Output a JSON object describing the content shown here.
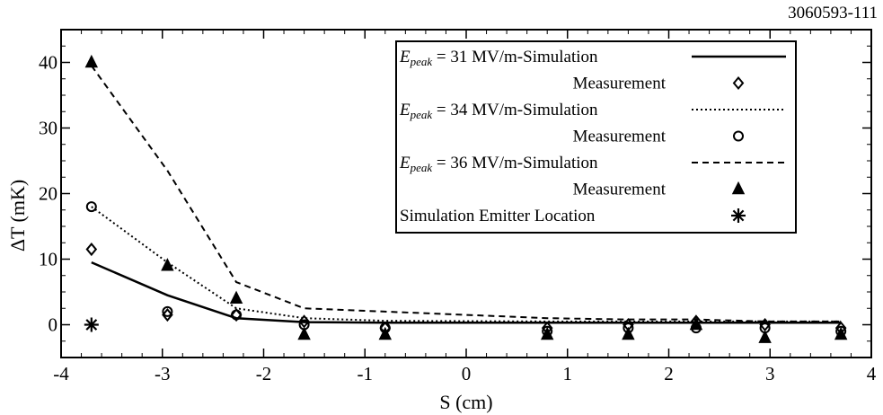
{
  "figure_id": "3060593-111",
  "chart_data": {
    "type": "line",
    "title": "",
    "xlabel": "S (cm)",
    "ylabel": "ΔT (mK)",
    "xlim": [
      -4,
      4
    ],
    "ylim": [
      -5,
      45
    ],
    "x_ticks": [
      -4,
      -3,
      -2,
      -1,
      0,
      1,
      2,
      3,
      4
    ],
    "y_ticks": [
      0,
      10,
      20,
      30,
      40
    ],
    "grid": false,
    "legend_position": "top-right",
    "series": [
      {
        "name": "E_peak = 31 MV/m-Simulation",
        "kind": "line",
        "dash": "solid",
        "x": [
          -3.7,
          -2.95,
          -2.27,
          -1.6,
          -0.8,
          0.8,
          1.6,
          2.27,
          2.95,
          3.7
        ],
        "y": [
          9.5,
          4.5,
          1.0,
          0.4,
          0.3,
          0.3,
          0.3,
          0.3,
          0.3,
          0.3
        ]
      },
      {
        "name": "Measurement",
        "kind": "marker",
        "marker": "diamond",
        "x": [
          -3.7,
          -2.95,
          -2.27,
          -1.6,
          -0.8,
          0.8,
          1.6,
          2.27,
          2.95,
          3.7
        ],
        "y": [
          11.5,
          1.5,
          1.5,
          0.5,
          -0.5,
          -0.5,
          0.0,
          0.5,
          0.0,
          -0.5
        ]
      },
      {
        "name": "E_peak = 34 MV/m-Simulation",
        "kind": "line",
        "dash": "dotted",
        "x": [
          -3.7,
          -2.95,
          -2.27,
          -1.6,
          -0.8,
          0.8,
          1.6,
          2.27,
          2.95,
          3.7
        ],
        "y": [
          18.0,
          9.5,
          2.5,
          1.0,
          0.6,
          0.5,
          0.5,
          0.5,
          0.5,
          0.5
        ]
      },
      {
        "name": "Measurement",
        "kind": "marker",
        "marker": "circle",
        "x": [
          -3.7,
          -2.95,
          -2.27,
          -1.6,
          -0.8,
          0.8,
          1.6,
          2.27,
          2.95,
          3.7
        ],
        "y": [
          18.0,
          2.0,
          1.5,
          0.0,
          -0.5,
          -1.0,
          -0.5,
          -0.5,
          -0.5,
          -1.0
        ]
      },
      {
        "name": "E_peak = 36 MV/m-Simulation",
        "kind": "line",
        "dash": "dashed",
        "x": [
          -3.7,
          -2.95,
          -2.27,
          -1.6,
          -0.8,
          0.8,
          1.6,
          2.27,
          2.95,
          3.7
        ],
        "y": [
          39.5,
          23.5,
          6.5,
          2.5,
          2.0,
          1.0,
          0.8,
          0.8,
          0.5,
          0.5
        ]
      },
      {
        "name": "Measurement",
        "kind": "marker",
        "marker": "triangle",
        "x": [
          -3.7,
          -2.95,
          -2.27,
          -1.6,
          -0.8,
          0.8,
          1.6,
          2.27,
          2.95,
          3.7
        ],
        "y": [
          40.0,
          9.0,
          4.0,
          -1.5,
          -1.5,
          -1.5,
          -1.5,
          0.0,
          -2.0,
          -1.5
        ]
      },
      {
        "name": "Simulation Emitter Location",
        "kind": "marker",
        "marker": "asterisk",
        "x": [
          -3.7
        ],
        "y": [
          0
        ]
      }
    ]
  },
  "legend": {
    "entries": [
      {
        "prefix": "E",
        "sub": "peak",
        "text": " = 31 MV/m-Simulation",
        "align": "left",
        "symbol": "line-solid"
      },
      {
        "prefix": "",
        "sub": "",
        "text": "Measurement",
        "align": "right",
        "symbol": "diamond"
      },
      {
        "prefix": "E",
        "sub": "peak",
        "text": " = 34 MV/m-Simulation",
        "align": "left",
        "symbol": "line-dotted"
      },
      {
        "prefix": "",
        "sub": "",
        "text": "Measurement",
        "align": "right",
        "symbol": "circle"
      },
      {
        "prefix": "E",
        "sub": "peak",
        "text": " = 36 MV/m-Simulation",
        "align": "left",
        "symbol": "line-dashed"
      },
      {
        "prefix": "",
        "sub": "",
        "text": "Measurement",
        "align": "right",
        "symbol": "triangle"
      },
      {
        "prefix": "",
        "sub": "",
        "text": "Simulation Emitter Location",
        "align": "left",
        "symbol": "asterisk"
      }
    ]
  }
}
